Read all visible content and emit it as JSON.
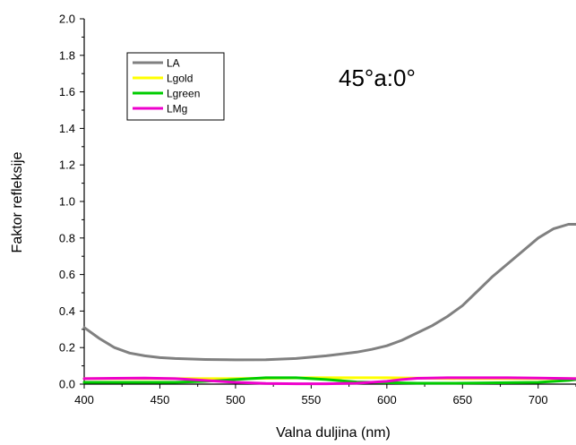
{
  "chart_data": {
    "type": "line",
    "title": "",
    "annotation": "45°a:0°",
    "xlabel": "Valna duljina (nm)",
    "ylabel": "Faktor refleksije",
    "xlim": [
      400,
      725
    ],
    "ylim": [
      0.0,
      2.0
    ],
    "x_ticks": [
      400,
      450,
      500,
      550,
      600,
      650,
      700
    ],
    "y_ticks": [
      "0.0",
      "0.2",
      "0.4",
      "0.6",
      "0.8",
      "1.0",
      "1.2",
      "1.4",
      "1.6",
      "1.8",
      "2.0"
    ],
    "grid": false,
    "legend_position": "top-left",
    "series": [
      {
        "name": "LA",
        "color": "#808080",
        "x": [
          400,
          410,
          420,
          430,
          440,
          450,
          460,
          480,
          500,
          520,
          540,
          560,
          580,
          590,
          600,
          610,
          620,
          630,
          640,
          650,
          660,
          670,
          680,
          690,
          700,
          710,
          720,
          725
        ],
        "y": [
          0.31,
          0.25,
          0.2,
          0.17,
          0.155,
          0.145,
          0.14,
          0.135,
          0.133,
          0.134,
          0.14,
          0.155,
          0.175,
          0.19,
          0.21,
          0.24,
          0.28,
          0.32,
          0.37,
          0.43,
          0.51,
          0.59,
          0.66,
          0.73,
          0.8,
          0.85,
          0.875,
          0.875
        ]
      },
      {
        "name": "Lgold",
        "color": "#ffff00",
        "x": [
          400,
          450,
          500,
          550,
          600,
          650,
          700,
          725
        ],
        "y": [
          0.03,
          0.03,
          0.03,
          0.035,
          0.035,
          0.03,
          0.03,
          0.03
        ]
      },
      {
        "name": "Lgreen",
        "color": "#00cc00",
        "x": [
          400,
          420,
          440,
          460,
          480,
          500,
          520,
          540,
          560,
          580,
          600,
          620,
          640,
          660,
          680,
          700,
          720,
          725
        ],
        "y": [
          0.01,
          0.01,
          0.01,
          0.01,
          0.015,
          0.025,
          0.035,
          0.035,
          0.025,
          0.012,
          0.008,
          0.005,
          0.005,
          0.006,
          0.008,
          0.01,
          0.02,
          0.025
        ]
      },
      {
        "name": "LMg",
        "color": "#ee00cc",
        "x": [
          400,
          420,
          440,
          460,
          480,
          500,
          520,
          540,
          560,
          580,
          600,
          610,
          620,
          640,
          660,
          680,
          700,
          725
        ],
        "y": [
          0.03,
          0.032,
          0.033,
          0.03,
          0.02,
          0.01,
          0.004,
          0.002,
          0.002,
          0.005,
          0.015,
          0.025,
          0.032,
          0.035,
          0.035,
          0.035,
          0.033,
          0.03
        ]
      }
    ]
  }
}
